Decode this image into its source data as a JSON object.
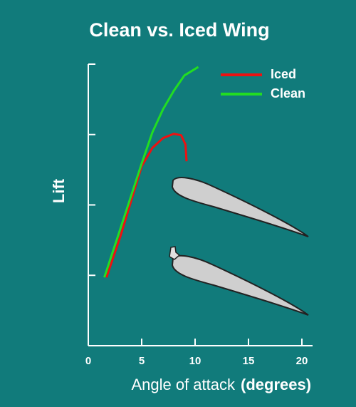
{
  "chart_data": {
    "type": "line",
    "title": "Clean  vs. Iced Wing",
    "xlabel": "Angle of attack",
    "xlabel_unit": "(degrees)",
    "ylabel": "Lift",
    "xlim": [
      0,
      21
    ],
    "xticks": [
      0,
      5,
      10,
      15,
      20
    ],
    "ylim": [
      0,
      4
    ],
    "yticks": [
      1,
      2,
      3,
      4
    ],
    "ytick_labels": false,
    "legend": "upper right",
    "series": [
      {
        "name": "Iced",
        "color": "#ee1111",
        "x": [
          1.7,
          3,
          4,
          5,
          6,
          7,
          8,
          8.7,
          9.1,
          9.2
        ],
        "values": [
          0.97,
          1.55,
          2.05,
          2.55,
          2.81,
          2.95,
          3.01,
          2.99,
          2.86,
          2.62
        ]
      },
      {
        "name": "Clean",
        "color": "#22dd22",
        "x": [
          1.5,
          3,
          5,
          6,
          7,
          8,
          9,
          10.3
        ],
        "values": [
          0.97,
          1.66,
          2.59,
          3.03,
          3.36,
          3.62,
          3.84,
          3.96
        ]
      }
    ]
  }
}
